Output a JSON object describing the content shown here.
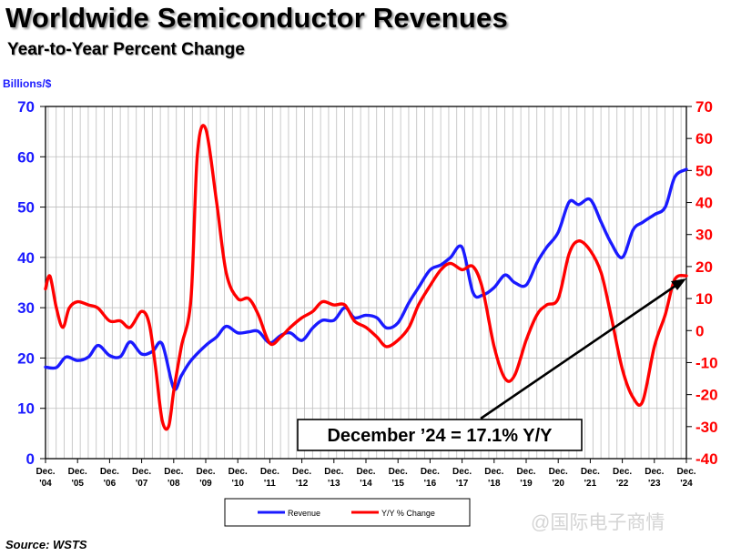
{
  "header": {
    "title": "Worldwide Semiconductor Revenues",
    "subtitle": "Year-to-Year Percent Change"
  },
  "footer": {
    "source": "Source: WSTS",
    "watermark": "@国际电子商情"
  },
  "chart_data": {
    "type": "line",
    "title": "Worldwide Semiconductor Revenues",
    "subtitle": "Year-to-Year Percent Change",
    "left_axis_label": "Billions/$",
    "left_ylim": [
      0,
      70
    ],
    "left_ticks": [
      0,
      10,
      20,
      30,
      40,
      50,
      60,
      70
    ],
    "right_ylim": [
      -40,
      70
    ],
    "right_ticks": [
      -40,
      -30,
      -20,
      -10,
      0,
      10,
      20,
      30,
      40,
      50,
      60,
      70
    ],
    "x_tick_labels": [
      [
        "Dec.",
        "'04"
      ],
      [
        "Dec.",
        "'05"
      ],
      [
        "Dec.",
        "'06"
      ],
      [
        "Dec.",
        "'07"
      ],
      [
        "Dec.",
        "'08"
      ],
      [
        "Dec.",
        "'09"
      ],
      [
        "Dec.",
        "'10"
      ],
      [
        "Dec.",
        "'11"
      ],
      [
        "Dec.",
        "'12"
      ],
      [
        "Dec.",
        "'13"
      ],
      [
        "Dec.",
        "'14"
      ],
      [
        "Dec.",
        "'15"
      ],
      [
        "Dec.",
        "'16"
      ],
      [
        "Dec.",
        "'17"
      ],
      [
        "Dec.",
        "'18"
      ],
      [
        "Dec.",
        "'19"
      ],
      [
        "Dec.",
        "'20"
      ],
      [
        "Dec.",
        "'21"
      ],
      [
        "Dec.",
        "'22"
      ],
      [
        "Dec.",
        "'23"
      ],
      [
        "Dec.",
        "'24"
      ]
    ],
    "grid": true,
    "legend_placement": "bottom",
    "annotation": "December ’24 = 17.1% Y/Y",
    "colors": {
      "revenue": "#1a1aff",
      "yy": "#ff0000",
      "left_axis": "#1a1aff",
      "right_axis": "#ff0000"
    },
    "series": [
      {
        "name": "Revenue",
        "axis": "left",
        "x": [
          2004.96,
          2005.3,
          2005.6,
          2005.96,
          2006.3,
          2006.6,
          2006.96,
          2007.3,
          2007.6,
          2007.96,
          2008.3,
          2008.6,
          2008.96,
          2009.2,
          2009.5,
          2009.96,
          2010.3,
          2010.6,
          2010.96,
          2011.3,
          2011.6,
          2011.96,
          2012.3,
          2012.6,
          2012.96,
          2013.3,
          2013.6,
          2013.96,
          2014.3,
          2014.6,
          2014.96,
          2015.3,
          2015.6,
          2015.96,
          2016.3,
          2016.6,
          2016.96,
          2017.3,
          2017.6,
          2017.96,
          2018.3,
          2018.6,
          2018.96,
          2019.3,
          2019.6,
          2019.96,
          2020.3,
          2020.6,
          2020.96,
          2021.3,
          2021.6,
          2021.96,
          2022.3,
          2022.6,
          2022.96,
          2023.3,
          2023.6,
          2023.96,
          2024.3,
          2024.6,
          2024.96
        ],
        "values": [
          18.2,
          18.1,
          20.2,
          19.5,
          20.2,
          22.5,
          20.5,
          20.3,
          23.2,
          20.8,
          21.3,
          22.8,
          14.0,
          16.5,
          19.5,
          22.5,
          24.2,
          26.3,
          25.0,
          25.2,
          25.3,
          23.0,
          24.5,
          25.0,
          23.5,
          26.0,
          27.5,
          27.5,
          30.0,
          28.0,
          28.5,
          28.0,
          26.0,
          27.0,
          31.0,
          34.0,
          37.5,
          38.5,
          40.0,
          42.0,
          33.0,
          32.5,
          34.0,
          36.5,
          35.0,
          34.5,
          39.0,
          42.0,
          45.0,
          51.0,
          50.5,
          51.5,
          47.0,
          43.0,
          40.0,
          45.5,
          47.0,
          48.5,
          50.0,
          56.0,
          57.5
        ]
      },
      {
        "name": "Y/Y % Change",
        "axis": "right",
        "x": [
          2004.96,
          2005.1,
          2005.3,
          2005.5,
          2005.7,
          2005.96,
          2006.3,
          2006.6,
          2006.96,
          2007.3,
          2007.6,
          2007.96,
          2008.2,
          2008.4,
          2008.6,
          2008.8,
          2008.96,
          2009.2,
          2009.5,
          2009.7,
          2009.96,
          2010.3,
          2010.6,
          2010.96,
          2011.3,
          2011.6,
          2011.96,
          2012.3,
          2012.6,
          2012.96,
          2013.3,
          2013.6,
          2013.96,
          2014.3,
          2014.6,
          2014.96,
          2015.3,
          2015.6,
          2015.96,
          2016.3,
          2016.6,
          2016.96,
          2017.3,
          2017.6,
          2017.96,
          2018.3,
          2018.6,
          2018.96,
          2019.3,
          2019.6,
          2019.96,
          2020.3,
          2020.6,
          2020.96,
          2021.3,
          2021.6,
          2021.96,
          2022.3,
          2022.6,
          2022.96,
          2023.3,
          2023.6,
          2023.96,
          2024.3,
          2024.6,
          2024.96
        ],
        "values": [
          13.0,
          17.0,
          7.0,
          1.0,
          7.0,
          9.0,
          8.0,
          7.0,
          3.0,
          3.0,
          1.0,
          6.0,
          2.0,
          -12.0,
          -28.0,
          -30.0,
          -19.0,
          -5.0,
          10.0,
          55.0,
          63.0,
          40.0,
          18.0,
          10.0,
          10.0,
          5.0,
          -4.0,
          -2.0,
          1.0,
          4.0,
          6.0,
          9.0,
          8.0,
          8.0,
          3.0,
          1.0,
          -2.0,
          -5.0,
          -3.0,
          1.0,
          8.0,
          14.0,
          19.0,
          21.0,
          19.0,
          20.0,
          13.0,
          -5.0,
          -15.0,
          -14.0,
          -3.0,
          5.0,
          8.0,
          10.0,
          24.0,
          28.0,
          25.0,
          18.0,
          5.0,
          -12.0,
          -21.0,
          -22.0,
          -5.0,
          5.0,
          16.0,
          17.1
        ]
      }
    ]
  }
}
